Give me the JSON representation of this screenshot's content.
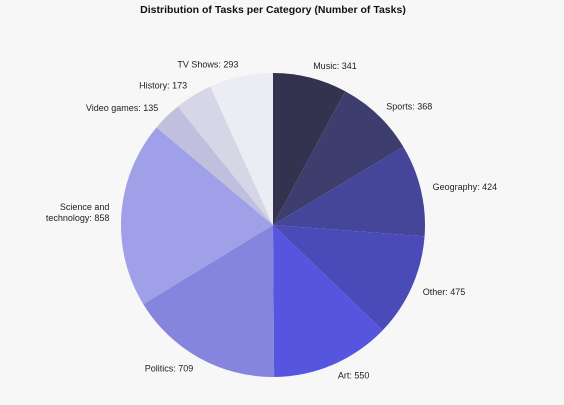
{
  "chart_data": {
    "type": "pie",
    "title": "Distribution of Tasks per Category (Number of Tasks)",
    "slices": [
      {
        "name": "Music",
        "label": "Music: 341",
        "value": 341,
        "color": "#33334f"
      },
      {
        "name": "Sports",
        "label": "Sports: 368",
        "value": 368,
        "color": "#3d3d6e"
      },
      {
        "name": "Geography",
        "label": "Geography: 424",
        "value": 424,
        "color": "#45459a"
      },
      {
        "name": "Other",
        "label": "Other: 475",
        "value": 475,
        "color": "#4a4ab8"
      },
      {
        "name": "Art",
        "label": "Art: 550",
        "value": 550,
        "color": "#5555e0"
      },
      {
        "name": "Politics",
        "label": "Politics: 709",
        "value": 709,
        "color": "#8585dd"
      },
      {
        "name": "Science and technology",
        "label": [
          "Science and",
          "technology: 858"
        ],
        "value": 858,
        "color": "#a0a0e8"
      },
      {
        "name": "Video games",
        "label": "Video games: 135",
        "value": 135,
        "color": "#c0c0de"
      },
      {
        "name": "History",
        "label": "History: 173",
        "value": 173,
        "color": "#d6d6e6"
      },
      {
        "name": "TV Shows",
        "label": "TV Shows: 293",
        "value": 293,
        "color": "#ececf3"
      }
    ],
    "start": "12 o'clock",
    "direction": "clockwise",
    "legend": "none (slice labels)"
  }
}
